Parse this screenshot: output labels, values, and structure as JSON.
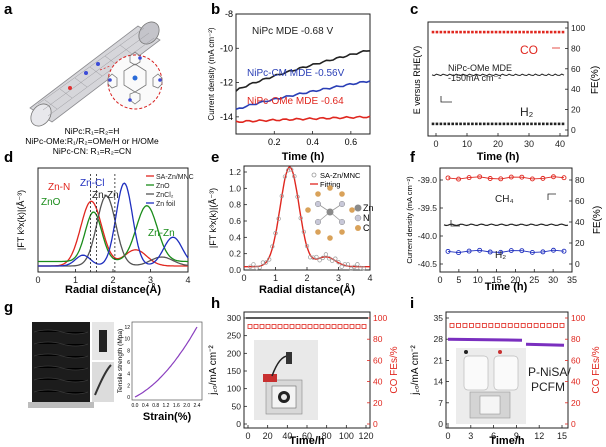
{
  "panels": {
    "a": {
      "letter": "a",
      "cap1": "NiPc:R₁=R₂=H",
      "cap2": "NiPc-OMe:R₁/R₂=OMe/H or H/OMe",
      "cap3": "NiPc-CN: R₁=R₂=CN"
    },
    "b": {
      "letter": "b",
      "ylabel": "Current density (mA cm⁻²)",
      "xlabel": "Time (h)",
      "l1": "NiPc MDE -0.68 V",
      "l2": "NiPc-CM MDE -0.56V",
      "l3": "NiPc-OMe MDE -0.64"
    },
    "c": {
      "letter": "c",
      "ylabel_left": "E versus RHE(V)",
      "ylabel_right": "FE(%)",
      "xlabel": "Time (h)",
      "co": "CO",
      "h2": "H₂",
      "note1": "NiPc-OMe MDE",
      "note2": "-150mA cm⁻²"
    },
    "d": {
      "letter": "d",
      "ylabel": "|FT k³x(k)|(Å⁻³)",
      "xlabel": "Radial distance(Å)",
      "znn": "Zn-N",
      "zncl": "Zn-Cl",
      "znzn": "Zn-Zn",
      "zno": "ZnO",
      "znzn2": "Zn-Zn"
    },
    "e": {
      "letter": "e",
      "ylabel": "|FT k³x(k)|(Å⁻³)",
      "xlabel": "Radial distance(Å)"
    },
    "f": {
      "letter": "f",
      "ylabel_left": "Current density (mA cm⁻²)",
      "ylabel_right": "FE(%)",
      "xlabel": "Time (h)",
      "ch4": "CH₄",
      "h2": "H₂"
    },
    "g": {
      "letter": "g",
      "ylabel": "Tensile strength (Mpa)",
      "xlabel": "Strain(%)"
    },
    "h": {
      "letter": "h",
      "ylabel_left": "j꜀ₒ/mA cm⁻²",
      "ylabel_right": "CO FEs/%",
      "xlabel": "Time/h"
    },
    "i": {
      "letter": "i",
      "ylabel_left": "j꜀ₒ/mA cm⁻²",
      "ylabel_right": "CO FEs/%",
      "xlabel": "Time/h",
      "label1": "P-NiSA/",
      "label2": "PCFM"
    }
  },
  "chart_data": [
    {
      "id": "b",
      "type": "line",
      "title": "",
      "xlabel": "Time (h)",
      "ylabel": "Current density (mA cm⁻²)",
      "xlim": [
        0,
        0.7
      ],
      "ylim": [
        -15,
        -8
      ],
      "series": [
        {
          "name": "NiPc MDE -0.68 V",
          "color": "#222222",
          "x": [
            0,
            0.7
          ],
          "y": [
            -12.5,
            -10.1
          ]
        },
        {
          "name": "NiPc-CM MDE -0.56V",
          "color": "#2a3fb6",
          "x": [
            0,
            0.7
          ],
          "y": [
            -13.6,
            -11.9
          ]
        },
        {
          "name": "NiPc-OMe MDE -0.64",
          "color": "#e0271f",
          "x": [
            0,
            0.7
          ],
          "y": [
            -14.3,
            -14.0
          ]
        }
      ],
      "xticks": [
        "0.2",
        "0.4",
        "0.6"
      ],
      "yticks": [
        "-8",
        "-10",
        "-12",
        "-14"
      ]
    },
    {
      "id": "c",
      "type": "scatter",
      "xlabel": "Time (h)",
      "ylabel": "E versus RHE(V)",
      "y2label": "FE(%)",
      "xticks": [
        "0",
        "10",
        "20",
        "30",
        "40"
      ],
      "y2ticks": [
        "0",
        "20",
        "40",
        "60",
        "80",
        "100"
      ],
      "series": [
        {
          "name": "CO",
          "color": "#e0271f",
          "fe": 96
        },
        {
          "name": "E",
          "color": "#222222",
          "fe": 54
        },
        {
          "name": "H₂",
          "color": "#222222",
          "fe": 6
        }
      ]
    },
    {
      "id": "d",
      "type": "line",
      "xlabel": "Radial distance(Å)",
      "ylabel": "|FT k³x(k)|(Å⁻³)",
      "xlim": [
        0,
        4
      ],
      "xticks": [
        "0",
        "1",
        "2",
        "3",
        "4"
      ],
      "series": [
        {
          "name": "SA-Zn/MNC",
          "color": "#e0271f"
        },
        {
          "name": "ZnO",
          "color": "#1a8c1a"
        },
        {
          "name": "ZnCl₂",
          "color": "#555555"
        },
        {
          "name": "Zn foil",
          "color": "#1f2fbf"
        }
      ]
    },
    {
      "id": "e",
      "type": "line",
      "xlabel": "Radial distance(Å)",
      "ylabel": "|FT k³x(k)|(Å⁻³)",
      "xlim": [
        0,
        4
      ],
      "ylim": [
        0,
        1.4
      ],
      "xticks": [
        "0",
        "1",
        "2",
        "3",
        "4"
      ],
      "yticks": [
        "0.0",
        "0.2",
        "0.4",
        "0.6",
        "0.8",
        "1.0",
        "1.2"
      ],
      "series": [
        {
          "name": "SA-Zn/MNC",
          "color": "#999999"
        },
        {
          "name": "Fitting",
          "color": "#e0271f"
        }
      ],
      "atoms": [
        "Zn",
        "N",
        "C"
      ]
    },
    {
      "id": "f",
      "type": "line",
      "xlabel": "Time (h)",
      "ylabel": "Current density (mA cm⁻²)",
      "y2label": "FE(%)",
      "xticks": [
        "0",
        "5",
        "10",
        "15",
        "20",
        "25",
        "30",
        "35"
      ],
      "yticks": [
        "-39.0",
        "-39.5",
        "-40.0",
        "-40.5"
      ],
      "y2ticks": [
        "0",
        "20",
        "40",
        "60",
        "80"
      ],
      "series": [
        {
          "name": "CH₄",
          "color": "#e0271f",
          "fe": 82
        },
        {
          "name": "Current density",
          "color": "#222222",
          "value": -39.8
        },
        {
          "name": "H₂",
          "color": "#1f2fbf",
          "fe": 12
        }
      ]
    },
    {
      "id": "g",
      "type": "line",
      "xlabel": "Strain(%)",
      "ylabel": "Tensile strength (Mpa)",
      "xticks": [
        "0.0",
        "0.4",
        "0.8",
        "1.2",
        "1.6",
        "2.0",
        "2.4"
      ],
      "yticks": [
        "0",
        "2",
        "4",
        "6",
        "8",
        "10",
        "12"
      ],
      "series": [
        {
          "name": "",
          "color": "#8a3fbf",
          "x": [
            0,
            2.4
          ],
          "y": [
            0,
            12
          ]
        }
      ]
    },
    {
      "id": "h",
      "type": "line",
      "xlabel": "Time/h",
      "ylabel": "j꜀ₒ/mA cm⁻²",
      "y2label": "CO FEs/%",
      "xticks": [
        "0",
        "20",
        "40",
        "60",
        "80",
        "100",
        "120"
      ],
      "yticks": [
        "0",
        "50",
        "100",
        "150",
        "200",
        "250",
        "300"
      ],
      "y2ticks": [
        "0",
        "20",
        "40",
        "60",
        "80",
        "100"
      ],
      "series": [
        {
          "name": "jCO",
          "color": "#222222",
          "value": 300
        },
        {
          "name": "CO FE",
          "color": "#e0271f",
          "fe": 92
        }
      ]
    },
    {
      "id": "i",
      "type": "line",
      "xlabel": "Time/h",
      "ylabel": "j꜀ₒ/mA cm⁻²",
      "y2label": "CO FEs/%",
      "xticks": [
        "0",
        "3",
        "6",
        "9",
        "12",
        "15"
      ],
      "yticks": [
        "0",
        "7",
        "14",
        "21",
        "28",
        "35"
      ],
      "y2ticks": [
        "0",
        "20",
        "40",
        "60",
        "80",
        "100"
      ],
      "series": [
        {
          "name": "jCO",
          "color": "#7a2fbf",
          "value": 28
        },
        {
          "name": "CO FE",
          "color": "#e0271f",
          "fe": 93
        }
      ]
    }
  ]
}
